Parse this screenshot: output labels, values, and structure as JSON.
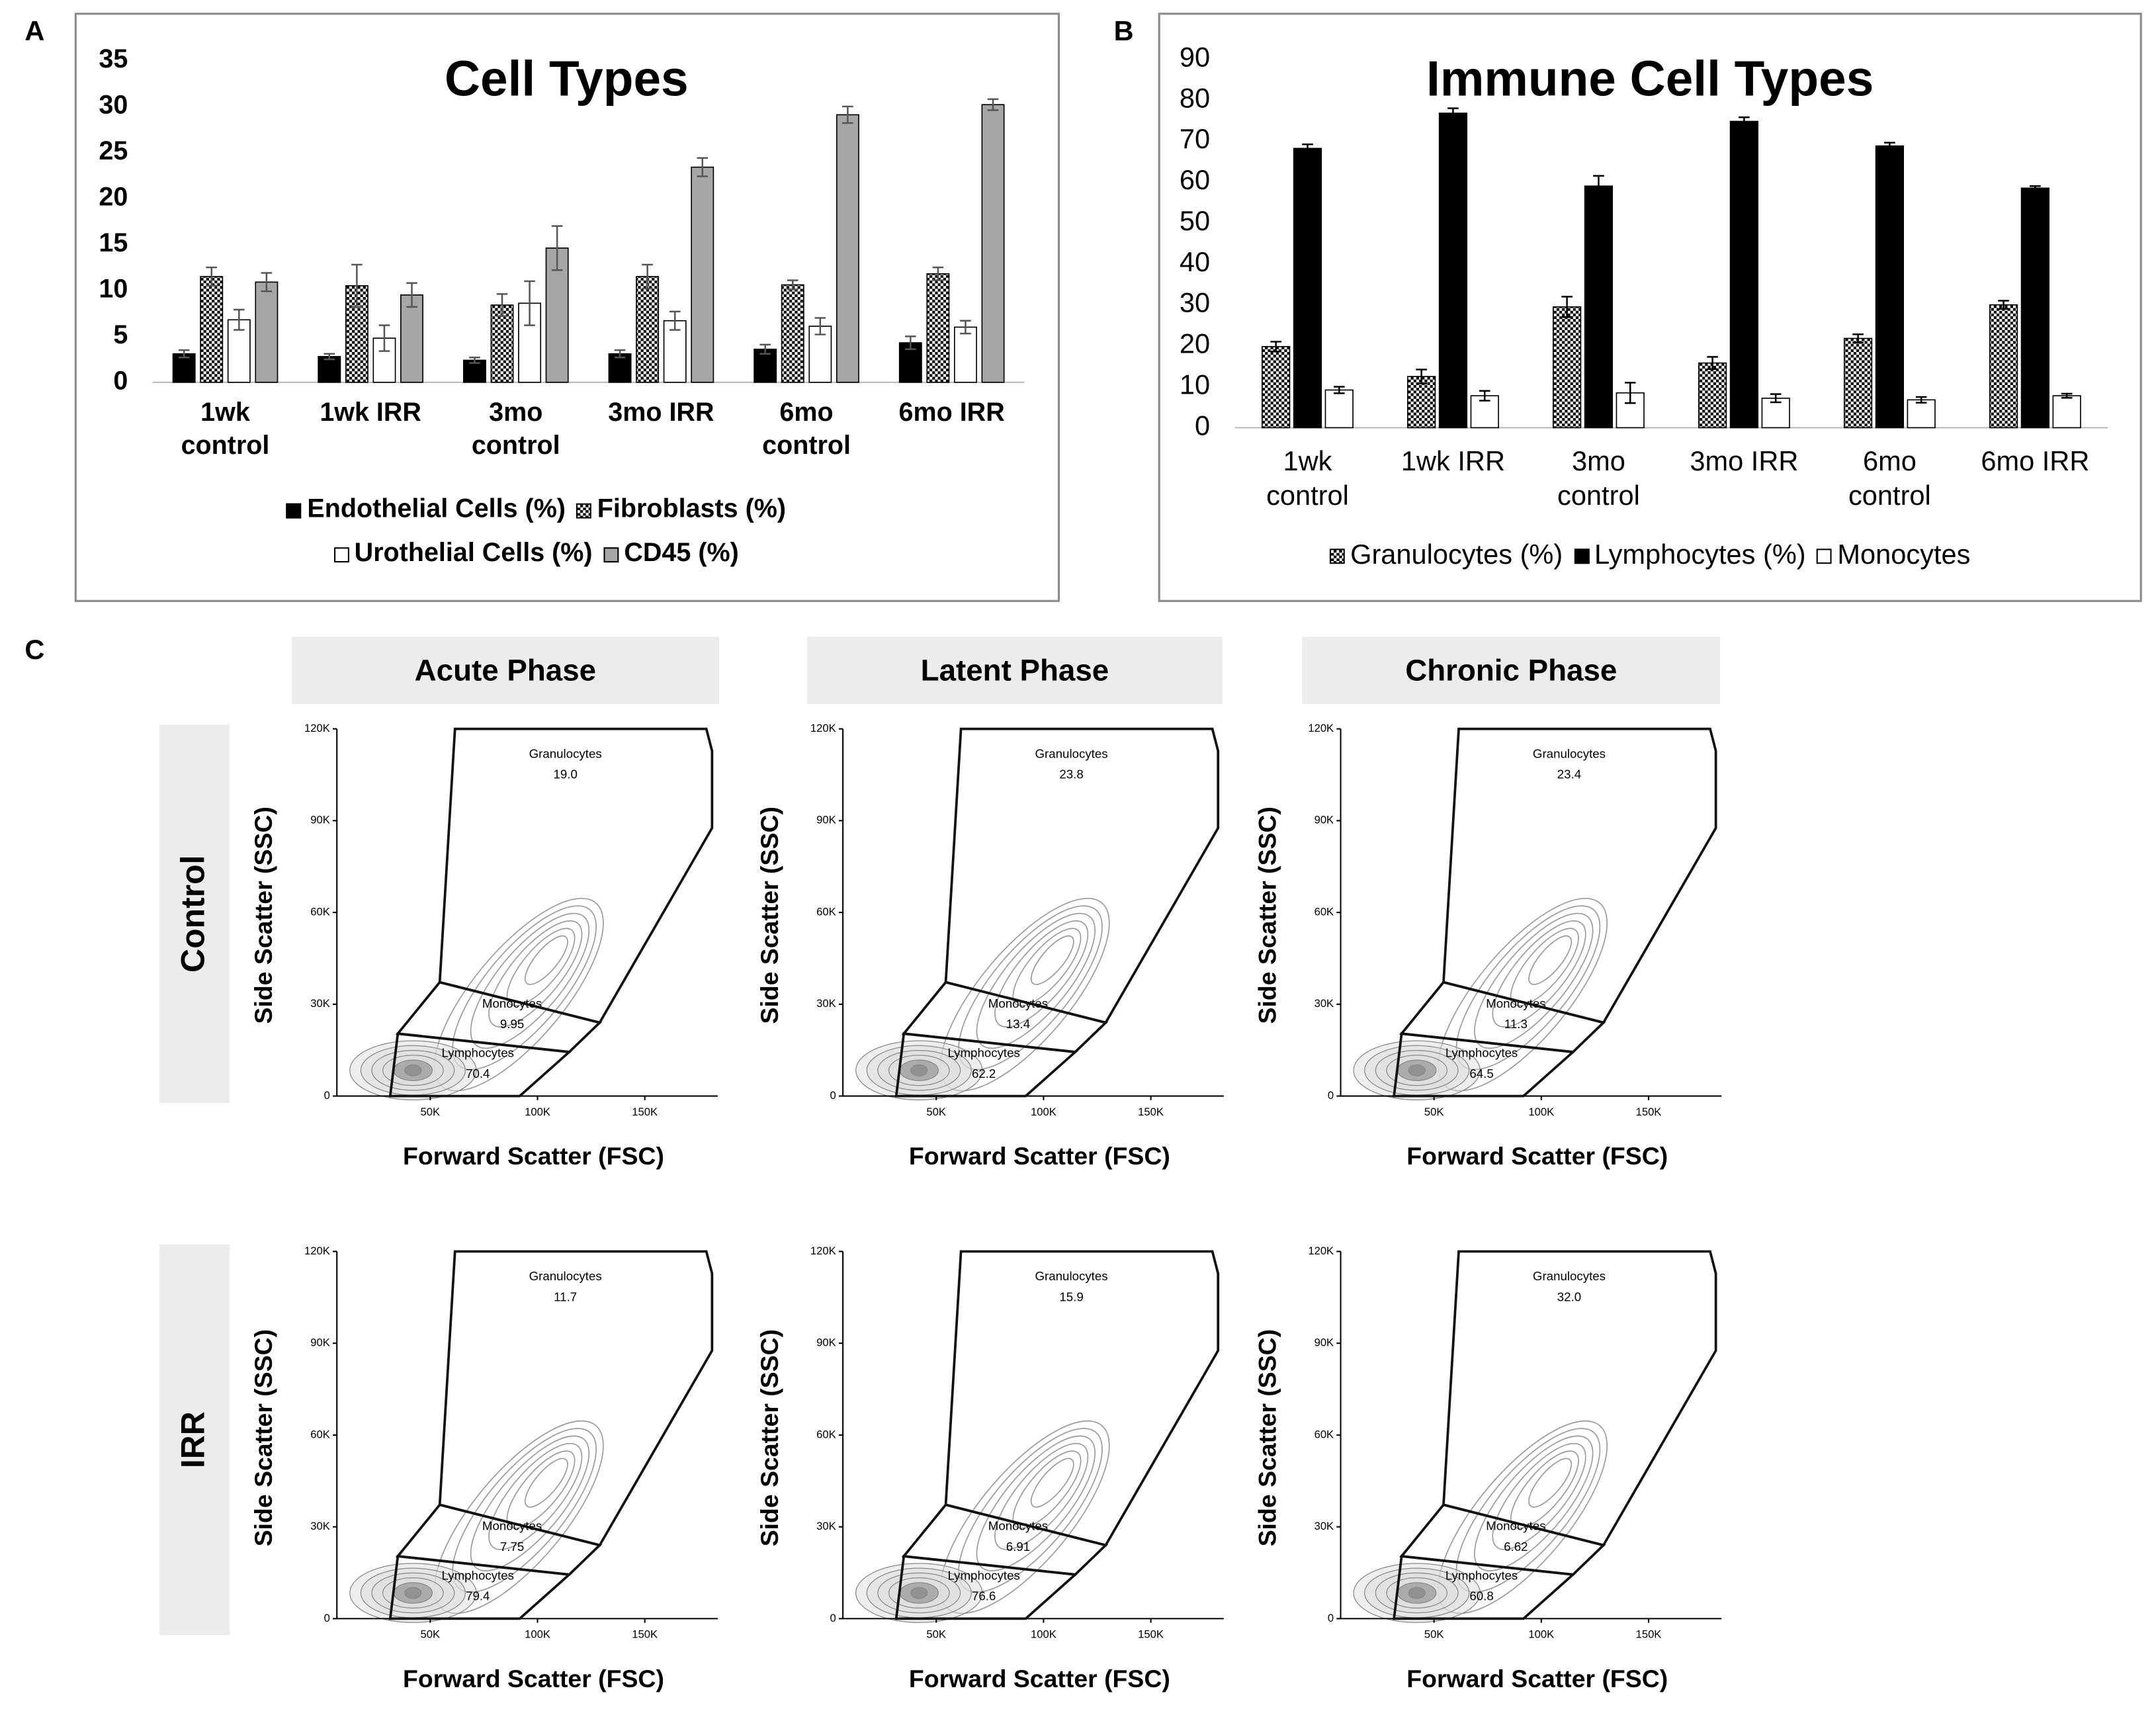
{
  "panel_labels": [
    "A",
    "B",
    "C"
  ],
  "phases": [
    "Acute Phase",
    "Latent Phase",
    "Chronic Phase"
  ],
  "conditions": [
    "Control",
    "IRR"
  ],
  "chart_data": [
    {
      "type": "bar",
      "title": "Cell Types",
      "categories": [
        "1wk control",
        "1wk IRR",
        "3mo control",
        "3mo IRR",
        "6mo control",
        "6mo IRR"
      ],
      "series": [
        {
          "name": "Endothelial Cells (%)",
          "color": "#000000",
          "values": [
            3.1,
            2.8,
            2.4,
            3.1,
            3.6,
            4.3
          ],
          "errors": [
            0.4,
            0.3,
            0.3,
            0.4,
            0.5,
            0.7
          ]
        },
        {
          "name": "Fibroblasts (%)",
          "color": "#000000",
          "pattern": "checker",
          "values": [
            11.5,
            10.5,
            8.4,
            11.5,
            10.6,
            11.8
          ],
          "errors": [
            1.0,
            2.3,
            1.2,
            1.3,
            0.5,
            0.7
          ]
        },
        {
          "name": "Urothelial Cells (%)",
          "color": "#ffffff",
          "values": [
            6.8,
            4.8,
            8.6,
            6.7,
            6.1,
            6.0
          ],
          "errors": [
            1.1,
            1.4,
            2.4,
            1.0,
            0.9,
            0.7
          ]
        },
        {
          "name": "CD45 (%)",
          "color": "#a6a6a6",
          "values": [
            10.9,
            9.5,
            14.6,
            23.4,
            29.1,
            30.2
          ],
          "errors": [
            1.0,
            1.3,
            2.4,
            1.0,
            0.9,
            0.6
          ]
        }
      ],
      "ylim": [
        0,
        35
      ],
      "yticks": [
        0,
        5,
        10,
        15,
        20,
        25,
        30,
        35
      ],
      "grid": false,
      "legend": "bottom"
    },
    {
      "type": "bar",
      "title": "Immune Cell Types",
      "categories": [
        "1wk control",
        "1wk IRR",
        "3mo control",
        "3mo IRR",
        "6mo control",
        "6mo IRR"
      ],
      "series": [
        {
          "name": "Granulocytes (%)",
          "color": "#000000",
          "pattern": "checker",
          "values": [
            19.8,
            12.5,
            29.5,
            15.8,
            21.8,
            30.0
          ],
          "errors": [
            1.2,
            1.7,
            2.5,
            1.5,
            1.0,
            1.0
          ]
        },
        {
          "name": "Lymphocytes (%)",
          "color": "#000000",
          "values": [
            68.2,
            76.8,
            59.0,
            74.8,
            68.8,
            58.5
          ],
          "errors": [
            1.0,
            1.2,
            2.5,
            1.0,
            0.8,
            0.5
          ]
        },
        {
          "name": "Monocytes",
          "color": "#ffffff",
          "values": [
            9.2,
            7.8,
            8.5,
            7.2,
            6.8,
            7.8
          ],
          "errors": [
            0.8,
            1.2,
            2.5,
            1.0,
            0.7,
            0.5
          ]
        }
      ],
      "ylim": [
        0,
        90
      ],
      "yticks": [
        0,
        10,
        20,
        30,
        40,
        50,
        60,
        70,
        80,
        90
      ],
      "grid": false,
      "legend": "bottom"
    },
    {
      "type": "flow",
      "x_label": "Forward Scatter (FSC)",
      "y_label": "Side Scatter (SSC)",
      "xlim": [
        6500,
        184000
      ],
      "ylim": [
        0,
        120000
      ],
      "xticks": [
        {
          "value": 50000,
          "label": "50K"
        },
        {
          "value": 100000,
          "label": "100K"
        },
        {
          "value": 150000,
          "label": "150K"
        }
      ],
      "yticks": [
        0,
        {
          "value": 30000,
          "label": "30K"
        },
        {
          "value": 60000,
          "label": "60K"
        },
        {
          "value": 90000,
          "label": "90K"
        },
        {
          "value": 120000,
          "label": "120K"
        }
      ],
      "categories": [
        "Granulocytes",
        "Monocytes",
        "Lymphocytes"
      ],
      "values": [
        19.0,
        9.95,
        70.4
      ],
      "value_labels": [
        "19.0",
        "9.95",
        "70.4"
      ]
    },
    {
      "type": "flow",
      "x_label": "Forward Scatter (FSC)",
      "y_label": "Side Scatter (SSC)",
      "xlim": [
        6500,
        184000
      ],
      "ylim": [
        0,
        120000
      ],
      "xticks": [
        {
          "value": 50000,
          "label": "50K"
        },
        {
          "value": 100000,
          "label": "100K"
        },
        {
          "value": 150000,
          "label": "150K"
        }
      ],
      "yticks": [
        0,
        {
          "value": 30000,
          "label": "30K"
        },
        {
          "value": 60000,
          "label": "60K"
        },
        {
          "value": 90000,
          "label": "90K"
        },
        {
          "value": 120000,
          "label": "120K"
        }
      ],
      "categories": [
        "Granulocytes",
        "Monocytes",
        "Lymphocytes"
      ],
      "values": [
        23.8,
        13.4,
        62.2
      ],
      "value_labels": [
        "23.8",
        "13.4",
        "62.2"
      ]
    },
    {
      "type": "flow",
      "x_label": "Forward Scatter (FSC)",
      "y_label": "Side Scatter (SSC)",
      "xlim": [
        6500,
        184000
      ],
      "ylim": [
        0,
        120000
      ],
      "xticks": [
        {
          "value": 50000,
          "label": "50K"
        },
        {
          "value": 100000,
          "label": "100K"
        },
        {
          "value": 150000,
          "label": "150K"
        }
      ],
      "yticks": [
        0,
        {
          "value": 30000,
          "label": "30K"
        },
        {
          "value": 60000,
          "label": "60K"
        },
        {
          "value": 90000,
          "label": "90K"
        },
        {
          "value": 120000,
          "label": "120K"
        }
      ],
      "categories": [
        "Granulocytes",
        "Monocytes",
        "Lymphocytes"
      ],
      "values": [
        23.4,
        11.3,
        64.5
      ],
      "value_labels": [
        "23.4",
        "11.3",
        "64.5"
      ]
    },
    {
      "type": "flow",
      "x_label": "Forward Scatter (FSC)",
      "y_label": "Side Scatter (SSC)",
      "xlim": [
        6500,
        184000
      ],
      "ylim": [
        0,
        120000
      ],
      "xticks": [
        {
          "value": 50000,
          "label": "50K"
        },
        {
          "value": 100000,
          "label": "100K"
        },
        {
          "value": 150000,
          "label": "150K"
        }
      ],
      "yticks": [
        0,
        {
          "value": 30000,
          "label": "30K"
        },
        {
          "value": 60000,
          "label": "60K"
        },
        {
          "value": 90000,
          "label": "90K"
        },
        {
          "value": 120000,
          "label": "120K"
        }
      ],
      "categories": [
        "Granulocytes",
        "Monocytes",
        "Lymphocytes"
      ],
      "values": [
        11.7,
        7.75,
        79.4
      ],
      "value_labels": [
        "11.7",
        "7.75",
        "79.4"
      ]
    },
    {
      "type": "flow",
      "x_label": "Forward Scatter (FSC)",
      "y_label": "Side Scatter (SSC)",
      "xlim": [
        6500,
        184000
      ],
      "ylim": [
        0,
        120000
      ],
      "xticks": [
        {
          "value": 50000,
          "label": "50K"
        },
        {
          "value": 100000,
          "label": "100K"
        },
        {
          "value": 150000,
          "label": "150K"
        }
      ],
      "yticks": [
        0,
        {
          "value": 30000,
          "label": "30K"
        },
        {
          "value": 60000,
          "label": "60K"
        },
        {
          "value": 90000,
          "label": "90K"
        },
        {
          "value": 120000,
          "label": "120K"
        }
      ],
      "categories": [
        "Granulocytes",
        "Monocytes",
        "Lymphocytes"
      ],
      "values": [
        15.9,
        6.91,
        76.6
      ],
      "value_labels": [
        "15.9",
        "6.91",
        "76.6"
      ]
    },
    {
      "type": "flow",
      "x_label": "Forward Scatter (FSC)",
      "y_label": "Side Scatter (SSC)",
      "xlim": [
        6500,
        184000
      ],
      "ylim": [
        0,
        120000
      ],
      "xticks": [
        {
          "value": 50000,
          "label": "50K"
        },
        {
          "value": 100000,
          "label": "100K"
        },
        {
          "value": 150000,
          "label": "150K"
        }
      ],
      "yticks": [
        0,
        {
          "value": 30000,
          "label": "30K"
        },
        {
          "value": 60000,
          "label": "60K"
        },
        {
          "value": 90000,
          "label": "90K"
        },
        {
          "value": 120000,
          "label": "120K"
        }
      ],
      "categories": [
        "Granulocytes",
        "Monocytes",
        "Lymphocytes"
      ],
      "values": [
        32.0,
        6.62,
        60.8
      ],
      "value_labels": [
        "32.0",
        "6.62",
        "60.8"
      ]
    }
  ]
}
